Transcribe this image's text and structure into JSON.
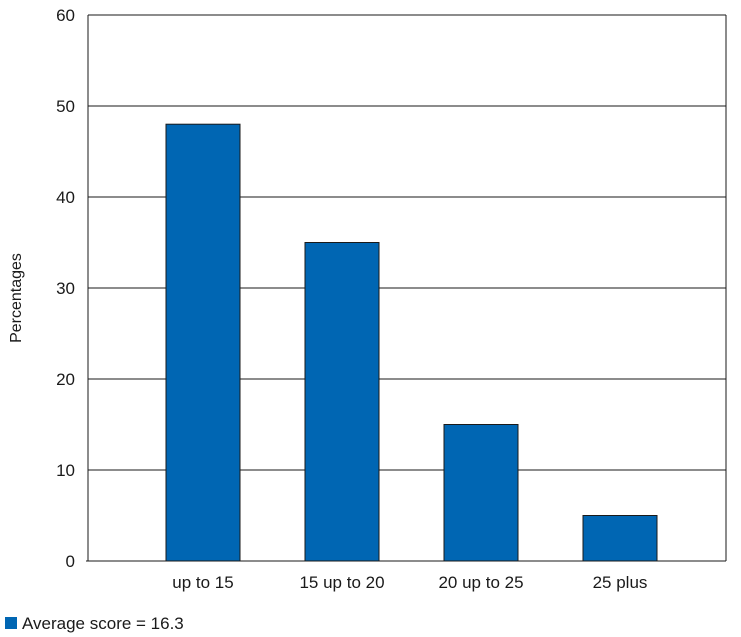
{
  "chart_data": {
    "type": "bar",
    "categories": [
      "up to 15",
      "15 up to 20",
      "20 up to 25",
      "25 plus"
    ],
    "series": [
      {
        "name": "Average score = 16.3",
        "values": [
          48,
          35,
          15,
          5
        ],
        "color": "#0066b3"
      }
    ],
    "ylabel": "Percentages",
    "xlabel": "",
    "ylim": [
      0,
      60
    ],
    "yticks": [
      0,
      10,
      20,
      30,
      40,
      50,
      60
    ],
    "grid": true,
    "legend_position": "bottom-left"
  }
}
